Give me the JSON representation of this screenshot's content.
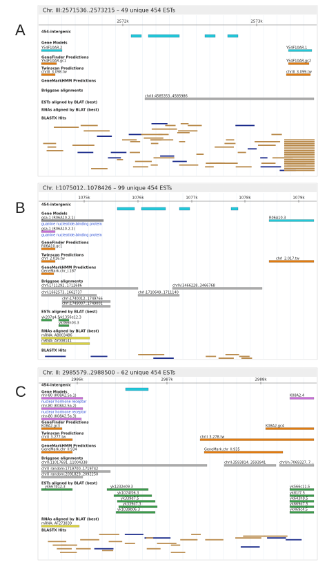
{
  "panels": [
    {
      "letter": "A",
      "title": "Chr. III:2571536..2573215 – 49 unique 454 ESTs",
      "ticks": [
        "2572k",
        "2573k"
      ],
      "tracks": [
        {
          "name": "454-intergenic",
          "features": []
        },
        {
          "name": "Gene Models",
          "features": [
            {
              "name": "Y54F10AR.2"
            },
            {
              "name": "Y54F10AR.1"
            }
          ]
        },
        {
          "name": "GeneFinder Predictions",
          "features": [
            {
              "name": "Y54F10AR.gc1"
            },
            {
              "name": "Y54F10AR.gc2"
            }
          ]
        },
        {
          "name": "Twinscan Predictions",
          "features": [
            {
              "name": "chrIII_3.098.tw"
            },
            {
              "name": "chrIII_3.099.tw"
            }
          ]
        },
        {
          "name": "GeneMarkHMM Predictions",
          "features": []
        },
        {
          "name": "Briggsae alignments",
          "features": [
            {
              "name": "chrIII:4585353..4585986"
            }
          ]
        },
        {
          "name": "ESTs aligned by BLAT (best)",
          "features": []
        },
        {
          "name": "RNAs aligned by BLAT (best)",
          "features": []
        },
        {
          "name": "BLASTX Hits",
          "features": []
        }
      ]
    },
    {
      "letter": "B",
      "title": "Chr. I:1075012..1078426 – 99 unique 454 ESTs",
      "ticks": [
        "1075k",
        "1076k",
        "1077k",
        "1078k",
        "1079k"
      ],
      "tracks": [
        {
          "name": "454-intergenic",
          "features": []
        },
        {
          "name": "Gene Models",
          "features": [
            {
              "name": "gsa-1 (R06A10.2.1)",
              "description": "guanine nucleotide-binding protein"
            },
            {
              "name": "gsa-1 (R06A10.2.2)",
              "description": "guanine nucleotide-binding protein"
            },
            {
              "name": "R06A10.3"
            }
          ]
        },
        {
          "name": "GeneFinder Predictions",
          "features": [
            {
              "name": "R06A10.gc1"
            }
          ]
        },
        {
          "name": "Twinscan Predictions",
          "features": [
            {
              "name": "chrI_2.016.tw"
            },
            {
              "name": "chrI_2.017.tw"
            }
          ]
        },
        {
          "name": "GeneMarkHMM Predictions",
          "features": [
            {
              "name": "GeneMark.chr_I.187"
            }
          ]
        },
        {
          "name": "Briggsae alignments",
          "features": [
            {
              "name": "chrI:1711292..1712686"
            },
            {
              "name": "chrIV:3466228..3466768"
            },
            {
              "name": "chrI:1662573..1662737"
            },
            {
              "name": "chrI:1710649..1711140"
            },
            {
              "name": "chrI:1740012..1749766"
            },
            {
              "name": "chrI:1749007..1749001"
            }
          ]
        },
        {
          "name": "ESTs aligned by BLAT (best)",
          "features": [
            {
              "name": "yk207g4.5"
            },
            {
              "name": "yk1356e12.3"
            },
            {
              "name": "yk366h03.3"
            }
          ]
        },
        {
          "name": "RNAs aligned by BLAT (best)",
          "features": [
            {
              "name": "mRNA: AB003486"
            },
            {
              "name": "mRNA: AY008141"
            }
          ]
        },
        {
          "name": "BLASTX Hits",
          "features": []
        }
      ]
    },
    {
      "letter": "C",
      "title": "Chr. II: 2985579..2988500 – 62 unique 454 ESTs",
      "ticks": [
        "2986k",
        "2987k",
        "2988k"
      ],
      "tracks": [
        {
          "name": "454-intergenic",
          "features": []
        },
        {
          "name": "Gene Models",
          "features": [
            {
              "name": "nhr-80 (K08A2.5a.1)",
              "description": "nuclear hormone receptor"
            },
            {
              "name": "nhr-80 (K08A2.5a.2)",
              "description": "nuclear hormone receptor"
            },
            {
              "name": "nhr-80 (K08A2.5a.3)"
            },
            {
              "name": "K08A2.4"
            }
          ]
        },
        {
          "name": "GeneFinder Predictions",
          "features": [
            {
              "name": "K08A2.gc3"
            },
            {
              "name": "K08A2.gc4"
            }
          ]
        },
        {
          "name": "Twinscan Predictions",
          "features": [
            {
              "name": "chrII_3.277.tw"
            },
            {
              "name": "chrII_3.278.tw"
            }
          ]
        },
        {
          "name": "GeneMarkHMM Predictions",
          "features": [
            {
              "name": "GeneMark.chr_II.934"
            },
            {
              "name": "GeneMark.chr_II.935"
            }
          ]
        },
        {
          "name": "Briggsae alignments",
          "features": [
            {
              "name": "chrII:11017691..11004338"
            },
            {
              "name": "chrII:3593814..3593941"
            },
            {
              "name": "chrUn:7069327..7..."
            },
            {
              "name": "chrII_random:1719700..1719742"
            },
            {
              "name": "chrII_random:2091829..2092250"
            }
          ]
        },
        {
          "name": "ESTs aligned by BLAT (best)",
          "features": [
            {
              "name": "yk667b12.3"
            },
            {
              "name": "yk1232e09.3"
            },
            {
              "name": "yk566c11.5"
            },
            {
              "name": "yk1074f06.3"
            },
            {
              "name": "yk81f7.5"
            },
            {
              "name": "yk339d7.5"
            },
            {
              "name": "yk643h9.5"
            },
            {
              "name": "yk339d7.3"
            },
            {
              "name": "yk669d7.5"
            },
            {
              "name": "yk1039b06.3"
            },
            {
              "name": "yk469c4.5"
            }
          ]
        },
        {
          "name": "RNAs aligned by BLAT (best)",
          "features": [
            {
              "name": "mRNA: AF273839"
            }
          ]
        },
        {
          "name": "BLASTX Hits",
          "features": []
        }
      ]
    }
  ]
}
